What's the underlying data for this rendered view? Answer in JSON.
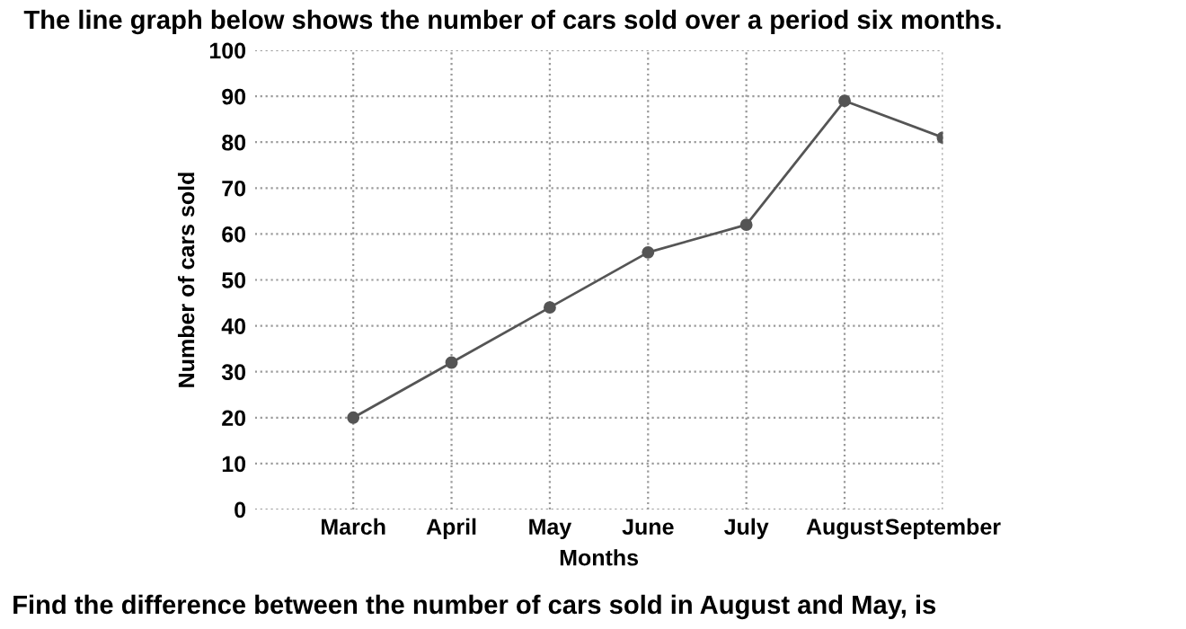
{
  "chart_data": {
    "type": "line",
    "title": "The line graph below shows the number of cars sold over a period six months.",
    "xlabel": "Months",
    "ylabel": "Number of cars sold",
    "categories": [
      "March",
      "April",
      "May",
      "June",
      "July",
      "August",
      "September"
    ],
    "series": [
      {
        "color": "#555555",
        "values": [
          20,
          32,
          44,
          56,
          62,
          89,
          81
        ]
      }
    ],
    "ylim": [
      0,
      100
    ],
    "yticks": [
      0,
      10,
      20,
      30,
      40,
      50,
      60,
      70,
      80,
      90,
      100
    ],
    "grid": true,
    "marker": "circle",
    "line_style": "solid",
    "annotations": [
      "Find the difference between the number of cars sold in August and May, is"
    ]
  }
}
